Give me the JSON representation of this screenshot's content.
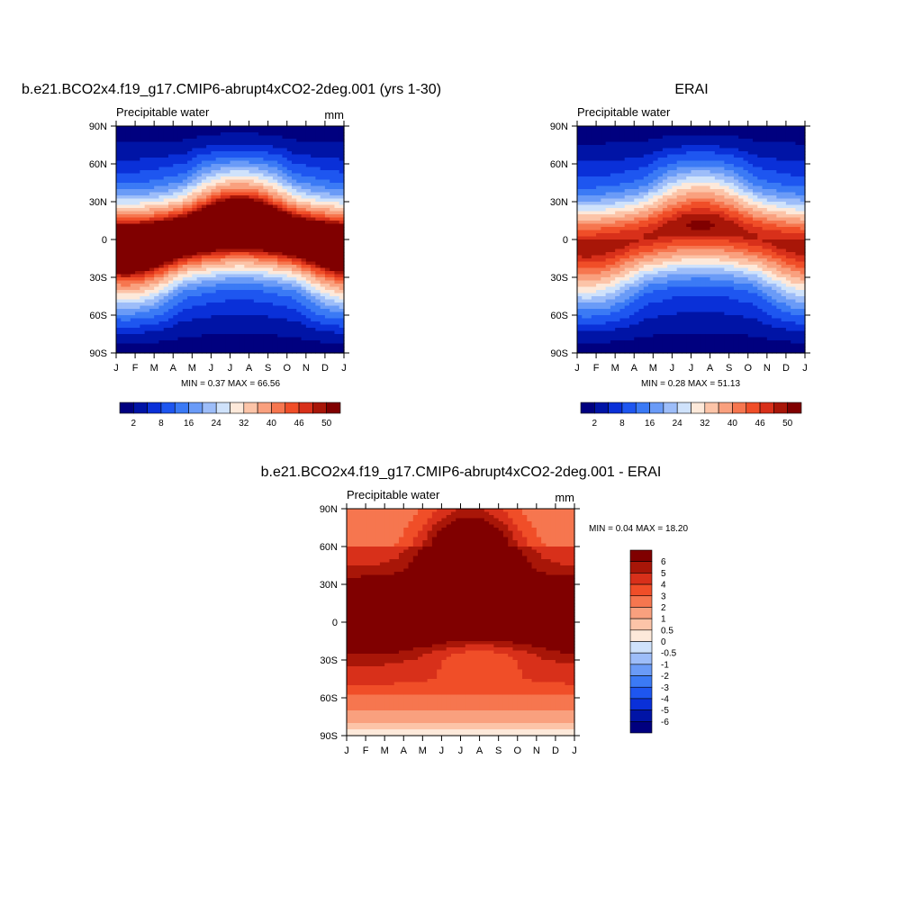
{
  "chart_data": [
    {
      "type": "heatmap",
      "title": "b.e21.BCO2x4.f19_g17.CMIP6-abrupt4xCO2-2deg.001 (yrs 1-30)",
      "variable": "Precipitable water",
      "units": "mm",
      "x_tick_labels": [
        "J",
        "F",
        "M",
        "A",
        "M",
        "J",
        "J",
        "A",
        "S",
        "O",
        "N",
        "D",
        "J"
      ],
      "y_tick_labels": [
        "90N",
        "60N",
        "30N",
        "0",
        "30S",
        "60S",
        "90S"
      ],
      "stats_text": "MIN =   0.37 MAX =  66.56",
      "min": 0.37,
      "max": 66.56,
      "colorbar_labels": [
        "2",
        "8",
        "16",
        "24",
        "32",
        "40",
        "46",
        "50"
      ],
      "eq_value": 60,
      "summer_gain": 12,
      "equator_shift_lat": 6,
      "field_kind": "climatology"
    },
    {
      "type": "heatmap",
      "title": "ERAI",
      "variable": "Precipitable water",
      "units": "",
      "x_tick_labels": [
        "J",
        "F",
        "M",
        "A",
        "M",
        "J",
        "J",
        "A",
        "S",
        "O",
        "N",
        "D",
        "J"
      ],
      "y_tick_labels": [
        "90N",
        "60N",
        "30N",
        "0",
        "30S",
        "60S",
        "90S"
      ],
      "stats_text": "MIN =   0.28 MAX =  51.13",
      "min": 0.28,
      "max": 51.13,
      "colorbar_labels": [
        "2",
        "8",
        "16",
        "24",
        "32",
        "40",
        "46",
        "50"
      ],
      "eq_value": 48,
      "summer_gain": 10,
      "equator_shift_lat": 6,
      "field_kind": "climatology"
    },
    {
      "type": "heatmap",
      "title": "b.e21.BCO2x4.f19_g17.CMIP6-abrupt4xCO2-2deg.001 - ERAI",
      "variable": "Precipitable water",
      "units": "mm",
      "x_tick_labels": [
        "J",
        "F",
        "M",
        "A",
        "M",
        "J",
        "J",
        "A",
        "S",
        "O",
        "N",
        "D",
        "J"
      ],
      "y_tick_labels": [
        "90N",
        "60N",
        "30N",
        "0",
        "30S",
        "60S",
        "90S"
      ],
      "stats_text": "MIN =   0.04 MAX =  18.20",
      "min": 0.04,
      "max": 18.2,
      "colorbar_labels": [
        "6",
        "5",
        "4",
        "3",
        "2",
        "1",
        "0.5",
        "0",
        "-0.5",
        "-1",
        "-2",
        "-3",
        "-4",
        "-5",
        "-6"
      ],
      "field_kind": "difference"
    }
  ],
  "colors": {
    "full_scale": [
      "#00007f",
      "#0014a6",
      "#0a30d8",
      "#1e56f0",
      "#3b7af5",
      "#6a9bf7",
      "#9dbdf9",
      "#cfe2fb",
      "#fde9da",
      "#fcc4a8",
      "#f9a07e",
      "#f6764f",
      "#f04e28",
      "#d8301a",
      "#a81608",
      "#800000"
    ],
    "diff_scale": [
      "#00007f",
      "#0014a6",
      "#0a30d8",
      "#1e56f0",
      "#3b7af5",
      "#6a9bf7",
      "#9dbdf9",
      "#cfe2fb",
      "#fde9da",
      "#fcc4a8",
      "#f9a07e",
      "#f6764f",
      "#f04e28",
      "#d8301a",
      "#a81608",
      "#800000"
    ],
    "full_levels": [
      2,
      5,
      8,
      12,
      16,
      20,
      24,
      28,
      32,
      36,
      40,
      43,
      46,
      48,
      50
    ],
    "diff_levels": [
      -6,
      -5,
      -4,
      -3,
      -2,
      -1,
      -0.5,
      0,
      0.5,
      1,
      2,
      3,
      4,
      5,
      6
    ]
  }
}
